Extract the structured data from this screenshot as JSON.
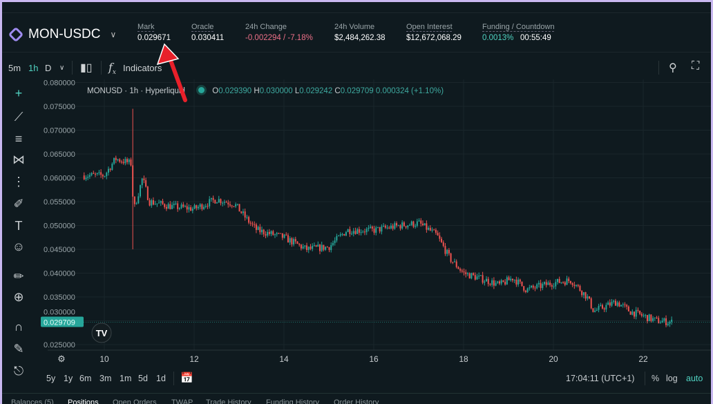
{
  "header": {
    "pair": "MON-USDC",
    "stats": [
      {
        "label": "Mark",
        "value": "0.029671"
      },
      {
        "label": "Oracle",
        "value": "0.030411"
      },
      {
        "label": "24h Change",
        "value": "-0.002294 / -7.18%"
      },
      {
        "label": "24h Volume",
        "value": "$2,484,262.38"
      },
      {
        "label": "Open Interest",
        "value": "$12,672,068.29"
      },
      {
        "label": "Funding / Countdown",
        "value": "0.0013%",
        "countdown": "00:55:49"
      }
    ]
  },
  "toolbar": {
    "intervals": [
      "5m",
      "1h",
      "D"
    ],
    "active_interval": "1h",
    "indicators": "Indicators"
  },
  "legend": {
    "symbol": "MONUSD · 1h · Hyperliquid",
    "o": "0.029390",
    "h": "0.030000",
    "l": "0.029242",
    "c": "0.029709",
    "chg": "0.000324 (+1.10%)"
  },
  "colors": {
    "up": "#26a69a",
    "down": "#ef5350",
    "accent": "#50d2c1",
    "frame": "#c9b8f0",
    "annotation_arrow": "#e8202a"
  },
  "chart_data": {
    "type": "candlestick",
    "symbol": "MONUSD",
    "interval": "1h",
    "y_ticks": [
      "0.080000",
      "0.075000",
      "0.070000",
      "0.065000",
      "0.060000",
      "0.055000",
      "0.050000",
      "0.045000",
      "0.040000",
      "0.035000",
      "0.030000",
      "0.025000"
    ],
    "ylim": [
      0.025,
      0.08
    ],
    "x_ticks": [
      "10",
      "12",
      "14",
      "16",
      "18",
      "20",
      "22"
    ],
    "xlim": [
      9.5,
      22.8
    ],
    "last_price": "0.029709",
    "close_path": [
      [
        9.55,
        0.0605
      ],
      [
        10.0,
        0.0605
      ],
      [
        10.25,
        0.064
      ],
      [
        10.6,
        0.063
      ],
      [
        10.65,
        0.053
      ],
      [
        10.85,
        0.06
      ],
      [
        11.0,
        0.055
      ],
      [
        11.5,
        0.054
      ],
      [
        12.0,
        0.0535
      ],
      [
        12.5,
        0.0555
      ],
      [
        12.9,
        0.0545
      ],
      [
        13.2,
        0.051
      ],
      [
        13.4,
        0.049
      ],
      [
        14.0,
        0.0475
      ],
      [
        14.5,
        0.045
      ],
      [
        15.0,
        0.0455
      ],
      [
        15.4,
        0.049
      ],
      [
        16.0,
        0.049
      ],
      [
        16.6,
        0.05
      ],
      [
        17.0,
        0.0505
      ],
      [
        17.4,
        0.048
      ],
      [
        17.7,
        0.043
      ],
      [
        18.0,
        0.04
      ],
      [
        18.5,
        0.0385
      ],
      [
        18.8,
        0.0375
      ],
      [
        19.1,
        0.039
      ],
      [
        19.4,
        0.0365
      ],
      [
        20.0,
        0.038
      ],
      [
        20.4,
        0.0385
      ],
      [
        20.75,
        0.035
      ],
      [
        20.9,
        0.032
      ],
      [
        21.4,
        0.034
      ],
      [
        21.7,
        0.032
      ],
      [
        22.0,
        0.031
      ],
      [
        22.3,
        0.03
      ],
      [
        22.65,
        0.0297
      ]
    ],
    "spike": {
      "day": 10.62,
      "high": 0.0745,
      "low": 0.045
    },
    "grid": true
  },
  "bottom": {
    "ranges": [
      "5y",
      "1y",
      "6m",
      "3m",
      "1m",
      "5d",
      "1d"
    ],
    "time": "17:04:11 (UTC+1)",
    "pct": "%",
    "log": "log",
    "auto": "auto"
  },
  "tabs": [
    "Balances (5)",
    "Positions",
    "Open Orders",
    "TWAP",
    "Trade History",
    "Funding History",
    "Order History"
  ]
}
